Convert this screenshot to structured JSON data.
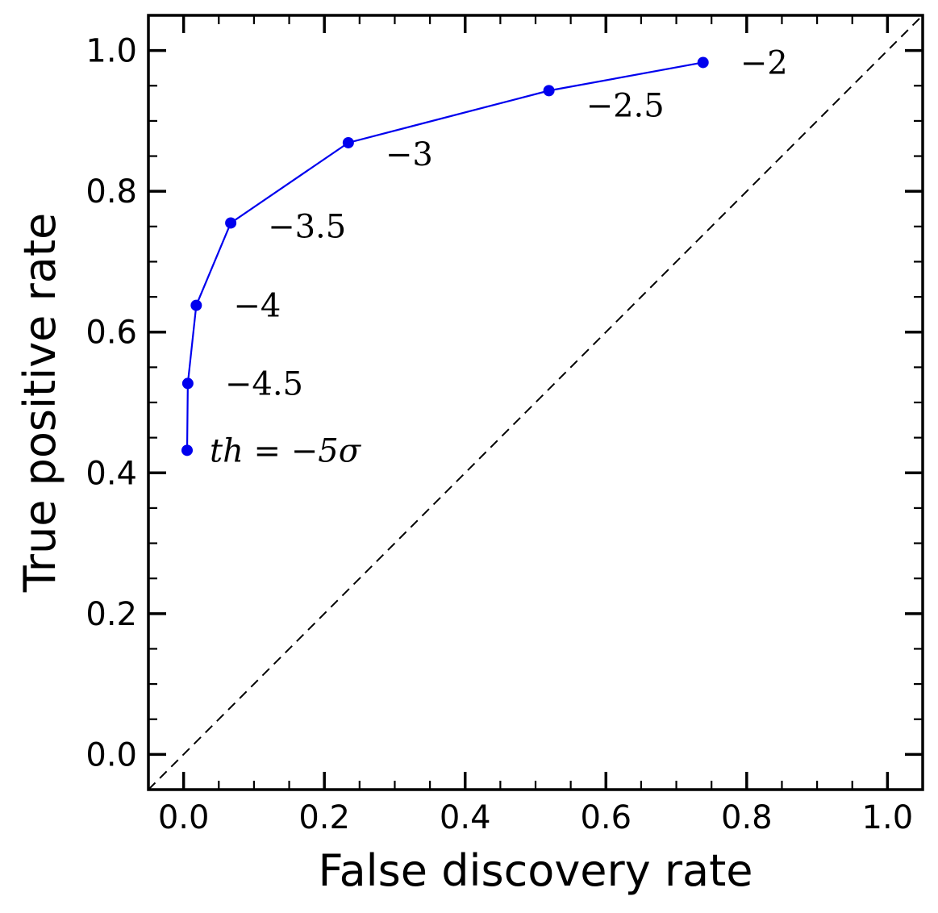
{
  "chart_data": {
    "type": "line",
    "xlabel": "False discovery rate",
    "ylabel": "True positive rate",
    "xlim": [
      -0.05,
      1.05
    ],
    "ylim": [
      -0.05,
      1.05
    ],
    "x_ticks": [
      "0.0",
      "0.2",
      "0.4",
      "0.6",
      "0.8",
      "1.0"
    ],
    "y_ticks": [
      "0.0",
      "0.2",
      "0.4",
      "0.6",
      "0.8",
      "1.0"
    ],
    "grid": false,
    "series": [
      {
        "color": "#0000ee",
        "marker": "circle",
        "points": [
          {
            "x": 0.005,
            "y": 0.432,
            "label": "th = −5σ"
          },
          {
            "x": 0.006,
            "y": 0.527,
            "label": "−4.5"
          },
          {
            "x": 0.018,
            "y": 0.638,
            "label": "−4"
          },
          {
            "x": 0.067,
            "y": 0.755,
            "label": "−3.5"
          },
          {
            "x": 0.234,
            "y": 0.869,
            "label": "−3"
          },
          {
            "x": 0.519,
            "y": 0.943,
            "label": "−2.5"
          },
          {
            "x": 0.738,
            "y": 0.983,
            "label": "−2"
          }
        ]
      }
    ],
    "reference_line": {
      "from": [
        -0.05,
        -0.05
      ],
      "to": [
        1.05,
        1.05
      ],
      "style": "dashed",
      "color": "#000000"
    }
  }
}
